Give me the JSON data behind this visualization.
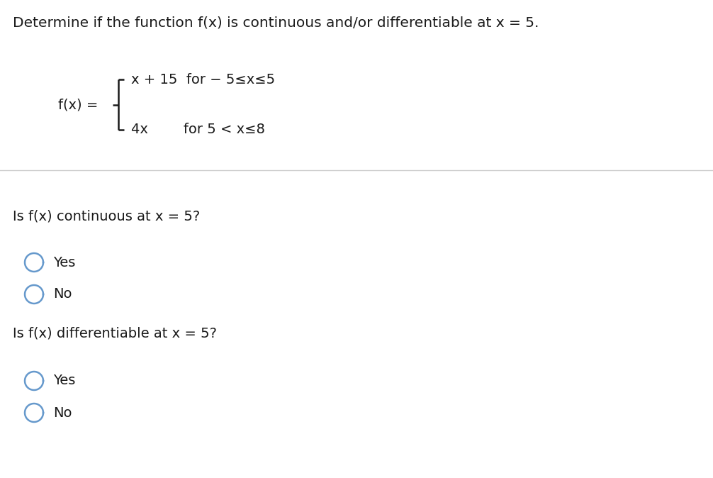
{
  "title": "Determine if the function f(x) is continuous and/or differentiable at x = 5.",
  "piecewise_label": "f(x) =",
  "piece1_expr": "x + 15  for − 5≤x≤5",
  "piece2_expr": "4x        for 5 < x≤8",
  "q1": "Is f(x) continuous at x = 5?",
  "q2": "Is f(x) differentiable at x = 5?",
  "yes": "Yes",
  "no": "No",
  "bg_color": "#ffffff",
  "text_color": "#1a1a1a",
  "radio_color": "#6699cc",
  "divider_color": "#cccccc",
  "title_fontsize": 14.5,
  "body_fontsize": 14,
  "label_fontsize": 13.5
}
